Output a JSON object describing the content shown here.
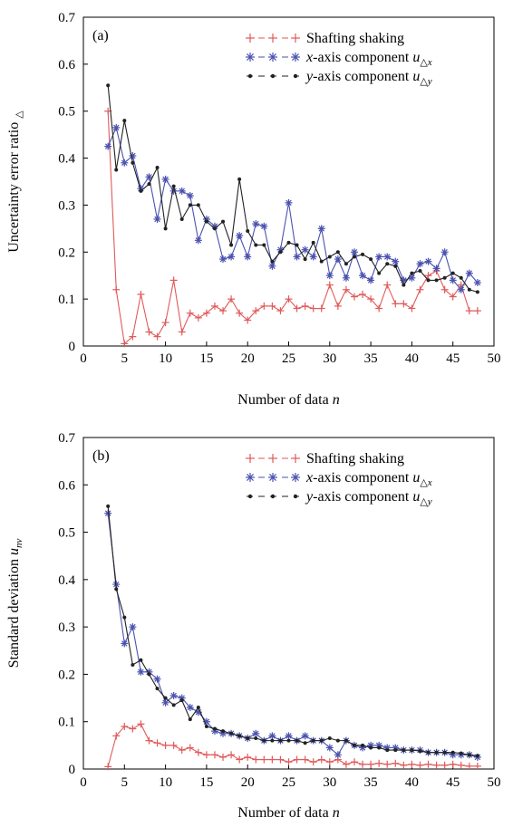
{
  "chart_data": [
    {
      "type": "line",
      "panel_label": "(a)",
      "xlabel": "Number of data n",
      "ylabel": "Uncertainty error ratio u△",
      "xlim": [
        0,
        50
      ],
      "ylim": [
        0,
        0.7
      ],
      "xticks": [
        0,
        5,
        10,
        15,
        20,
        25,
        30,
        35,
        40,
        45,
        50
      ],
      "yticks": [
        0,
        0.1,
        0.2,
        0.3,
        0.4,
        0.5,
        0.6,
        0.7
      ],
      "xtick_labels": [
        "0",
        "5",
        "10",
        "15",
        "20",
        "25",
        "30",
        "35",
        "40",
        "45",
        "50"
      ],
      "ytick_labels": [
        "0",
        "0.1",
        "0.2",
        "0.3",
        "0.4",
        "0.5",
        "0.6",
        "0.7"
      ],
      "grid": false,
      "legend_position": "top-right",
      "x": [
        3,
        4,
        5,
        6,
        7,
        8,
        9,
        10,
        11,
        12,
        13,
        14,
        15,
        16,
        17,
        18,
        19,
        20,
        21,
        22,
        23,
        24,
        25,
        26,
        27,
        28,
        29,
        30,
        31,
        32,
        33,
        34,
        35,
        36,
        37,
        38,
        39,
        40,
        41,
        42,
        43,
        44,
        45,
        46,
        47,
        48
      ],
      "series": [
        {
          "name": "Shafting shaking",
          "marker": "+",
          "color": "#e05a5a",
          "values": [
            0.5,
            0.12,
            0.005,
            0.02,
            0.11,
            0.03,
            0.02,
            0.05,
            0.14,
            0.03,
            0.07,
            0.06,
            0.07,
            0.085,
            0.075,
            0.1,
            0.07,
            0.055,
            0.075,
            0.085,
            0.085,
            0.075,
            0.1,
            0.08,
            0.085,
            0.08,
            0.08,
            0.13,
            0.085,
            0.12,
            0.105,
            0.11,
            0.1,
            0.08,
            0.13,
            0.09,
            0.09,
            0.08,
            0.12,
            0.15,
            0.16,
            0.12,
            0.105,
            0.13,
            0.075,
            0.075
          ]
        },
        {
          "name": "x-axis component u△x",
          "name_main": "x",
          "name_rest": "-axis component ",
          "name_sym": "u",
          "name_sub": "△x",
          "marker": "*",
          "color": "#4a52b0",
          "values": [
            0.425,
            0.465,
            0.39,
            0.405,
            0.335,
            0.36,
            0.27,
            0.355,
            0.33,
            0.33,
            0.32,
            0.225,
            0.27,
            0.255,
            0.185,
            0.19,
            0.235,
            0.19,
            0.26,
            0.255,
            0.17,
            0.205,
            0.305,
            0.19,
            0.205,
            0.19,
            0.25,
            0.15,
            0.185,
            0.145,
            0.2,
            0.15,
            0.14,
            0.19,
            0.19,
            0.18,
            0.14,
            0.145,
            0.175,
            0.18,
            0.165,
            0.2,
            0.14,
            0.12,
            0.155,
            0.135
          ]
        },
        {
          "name": "y-axis component u△y",
          "name_main": "y",
          "name_rest": "-axis component ",
          "name_sym": "u",
          "name_sub": "△y",
          "marker": "•",
          "color": "#222222",
          "values": [
            0.555,
            0.375,
            0.48,
            0.39,
            0.33,
            0.345,
            0.38,
            0.25,
            0.34,
            0.27,
            0.3,
            0.3,
            0.265,
            0.25,
            0.265,
            0.215,
            0.355,
            0.245,
            0.215,
            0.215,
            0.18,
            0.2,
            0.22,
            0.215,
            0.185,
            0.22,
            0.18,
            0.19,
            0.2,
            0.175,
            0.19,
            0.195,
            0.185,
            0.155,
            0.175,
            0.17,
            0.13,
            0.155,
            0.16,
            0.14,
            0.14,
            0.145,
            0.155,
            0.145,
            0.12,
            0.115
          ]
        }
      ]
    },
    {
      "type": "line",
      "panel_label": "(b)",
      "xlabel": "Number of data n",
      "ylabel": "Standard deviation unv",
      "xlim": [
        0,
        50
      ],
      "ylim": [
        0,
        0.7
      ],
      "xticks": [
        0,
        5,
        10,
        15,
        20,
        25,
        30,
        35,
        40,
        45,
        50
      ],
      "yticks": [
        0,
        0.1,
        0.2,
        0.3,
        0.4,
        0.5,
        0.6,
        0.7
      ],
      "xtick_labels": [
        "0",
        "5",
        "10",
        "15",
        "20",
        "25",
        "30",
        "35",
        "40",
        "45",
        "50"
      ],
      "ytick_labels": [
        "0",
        "0.1",
        "0.2",
        "0.3",
        "0.4",
        "0.5",
        "0.6",
        "0.7"
      ],
      "grid": false,
      "legend_position": "top-right",
      "x": [
        3,
        4,
        5,
        6,
        7,
        8,
        9,
        10,
        11,
        12,
        13,
        14,
        15,
        16,
        17,
        18,
        19,
        20,
        21,
        22,
        23,
        24,
        25,
        26,
        27,
        28,
        29,
        30,
        31,
        32,
        33,
        34,
        35,
        36,
        37,
        38,
        39,
        40,
        41,
        42,
        43,
        44,
        45,
        46,
        47,
        48
      ],
      "series": [
        {
          "name": "Shafting shaking",
          "marker": "+",
          "color": "#e05a5a",
          "values": [
            0.005,
            0.07,
            0.09,
            0.085,
            0.095,
            0.06,
            0.055,
            0.05,
            0.05,
            0.04,
            0.045,
            0.035,
            0.03,
            0.03,
            0.025,
            0.03,
            0.02,
            0.025,
            0.02,
            0.02,
            0.02,
            0.02,
            0.015,
            0.02,
            0.02,
            0.015,
            0.02,
            0.015,
            0.02,
            0.01,
            0.015,
            0.01,
            0.01,
            0.012,
            0.01,
            0.012,
            0.008,
            0.01,
            0.008,
            0.01,
            0.008,
            0.008,
            0.01,
            0.008,
            0.006,
            0.006
          ]
        },
        {
          "name": "x-axis component u△x",
          "name_main": "x",
          "name_rest": "-axis component ",
          "name_sym": "u",
          "name_sub": "△x",
          "marker": "*",
          "color": "#4a52b0",
          "values": [
            0.54,
            0.39,
            0.265,
            0.3,
            0.205,
            0.205,
            0.19,
            0.14,
            0.155,
            0.15,
            0.13,
            0.12,
            0.1,
            0.08,
            0.075,
            0.075,
            0.07,
            0.065,
            0.075,
            0.06,
            0.07,
            0.06,
            0.07,
            0.06,
            0.07,
            0.06,
            0.06,
            0.045,
            0.03,
            0.06,
            0.05,
            0.045,
            0.05,
            0.05,
            0.045,
            0.045,
            0.04,
            0.04,
            0.04,
            0.035,
            0.035,
            0.035,
            0.03,
            0.03,
            0.03,
            0.025
          ]
        },
        {
          "name": "y-axis component u△y",
          "name_main": "y",
          "name_rest": "-axis component ",
          "name_sym": "u",
          "name_sub": "△y",
          "marker": "•",
          "color": "#222222",
          "values": [
            0.555,
            0.38,
            0.32,
            0.22,
            0.23,
            0.2,
            0.17,
            0.15,
            0.135,
            0.145,
            0.105,
            0.13,
            0.09,
            0.085,
            0.08,
            0.075,
            0.07,
            0.065,
            0.065,
            0.06,
            0.06,
            0.06,
            0.06,
            0.06,
            0.055,
            0.06,
            0.06,
            0.065,
            0.06,
            0.06,
            0.05,
            0.05,
            0.045,
            0.045,
            0.04,
            0.04,
            0.04,
            0.04,
            0.038,
            0.035,
            0.035,
            0.035,
            0.035,
            0.033,
            0.03,
            0.028
          ]
        }
      ]
    }
  ]
}
